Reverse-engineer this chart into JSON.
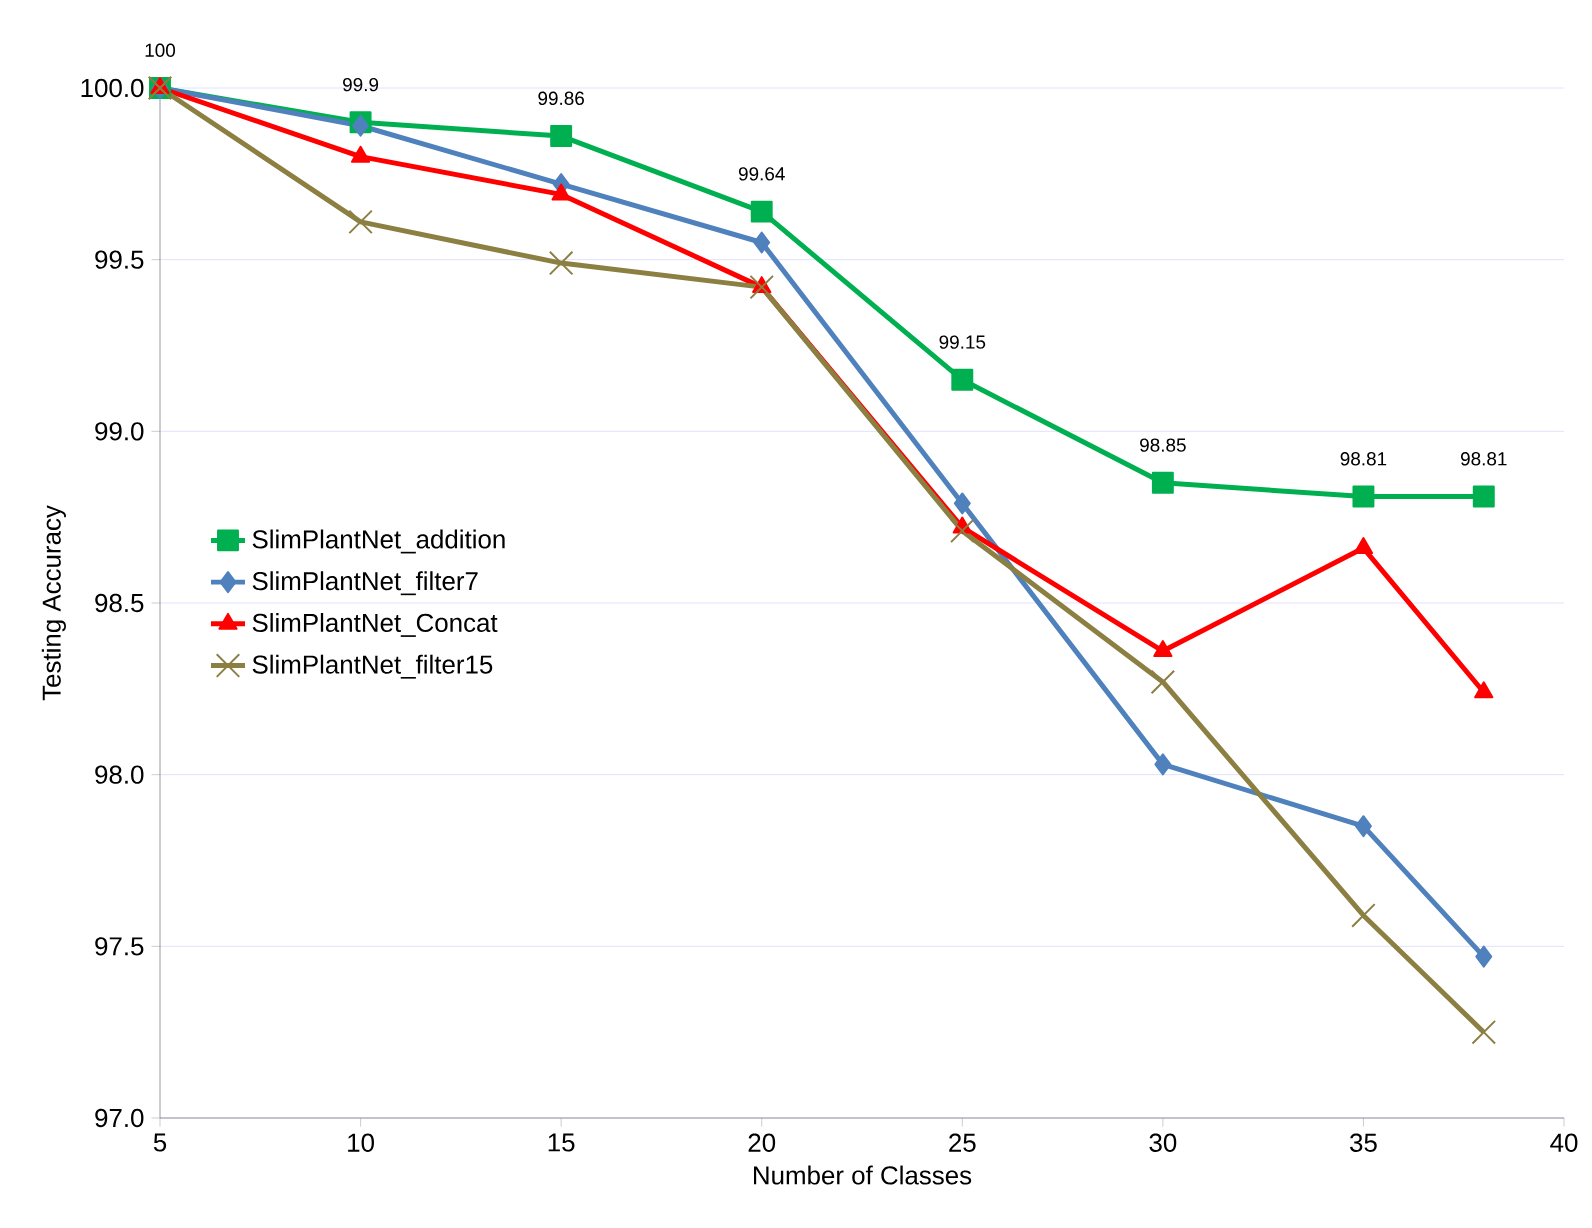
{
  "chart_data": {
    "type": "line",
    "xlabel": "Number of Classes",
    "ylabel": "Testing Accuracy",
    "x": [
      5,
      10,
      15,
      20,
      25,
      30,
      35,
      38
    ],
    "xlim": [
      5,
      40
    ],
    "xticks": [
      5,
      10,
      15,
      20,
      25,
      30,
      35,
      40
    ],
    "ylim": [
      97,
      100
    ],
    "yticks": [
      {
        "value": 97,
        "label": "97.0"
      },
      {
        "value": 97.5,
        "label": "97.5"
      },
      {
        "value": 98,
        "label": "98.0"
      },
      {
        "value": 98.5,
        "label": "98.5"
      },
      {
        "value": 99,
        "label": "99.0"
      },
      {
        "value": 99.5,
        "label": "99.5"
      },
      {
        "value": 100,
        "label": "100.0"
      }
    ],
    "grid": "y",
    "legend": "left",
    "series": [
      {
        "name": "SlimPlantNet_addition",
        "color": "#00b050",
        "marker": "square",
        "values": [
          100,
          99.9,
          99.86,
          99.64,
          99.15,
          98.85,
          98.81,
          98.81
        ],
        "value_labels": [
          "100",
          "99.9",
          "99.86",
          "99.64",
          "99.15",
          "98.85",
          "98.81",
          "98.81"
        ]
      },
      {
        "name": "SlimPlantNet_filter7",
        "color": "#4f81bd",
        "marker": "diamond",
        "values": [
          100,
          99.89,
          99.72,
          99.55,
          98.79,
          98.03,
          97.85,
          97.47
        ]
      },
      {
        "name": "SlimPlantNet_Concat",
        "color": "#ff0000",
        "marker": "triangle",
        "values": [
          100,
          99.8,
          99.69,
          99.42,
          98.72,
          98.36,
          98.66,
          98.24
        ]
      },
      {
        "name": "SlimPlantNet_filter15",
        "color": "#8c7f42",
        "marker": "cross",
        "values": [
          100,
          99.61,
          99.49,
          99.42,
          98.71,
          98.27,
          97.59,
          97.25
        ]
      }
    ]
  }
}
